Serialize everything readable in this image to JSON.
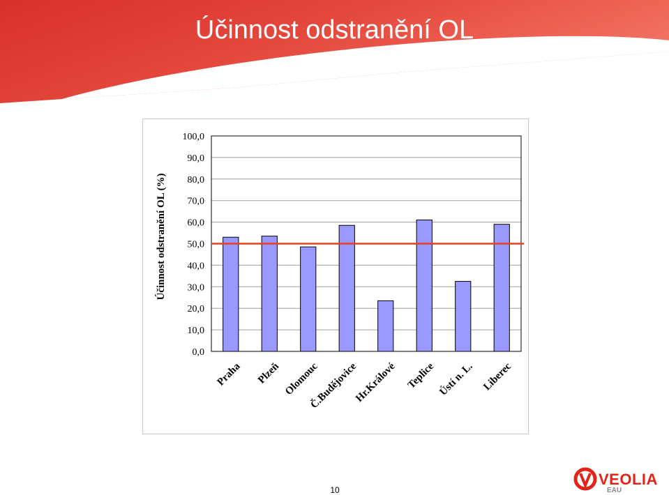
{
  "page": {
    "title": "Účinnost odstranění OL",
    "page_number": "10",
    "logo_text": "VEOLIA",
    "logo_subtext": "EAU"
  },
  "colors": {
    "header_red": "#e4473c",
    "bar_fill": "#9999ff",
    "bar_stroke": "#000000",
    "threshold_line": "#e8401c"
  },
  "chart_data": {
    "type": "bar",
    "categories": [
      "Praha",
      "Plzeň",
      "Olomouc",
      "Č.Budějovice",
      "Hr.Králové",
      "Teplice",
      "Ústí n. L.",
      "Liberec"
    ],
    "values": [
      53,
      53.5,
      48.5,
      58.5,
      23.5,
      61,
      32.5,
      59
    ],
    "ylabel": "Účinnost odstranění OL (%)",
    "xlabel": "",
    "ylim": [
      0,
      100
    ],
    "yticks": [
      "0,0",
      "10,0",
      "20,0",
      "30,0",
      "40,0",
      "50,0",
      "60,0",
      "70,0",
      "80,0",
      "90,0",
      "100,0"
    ],
    "threshold": 50,
    "grid": true,
    "legend": "none"
  }
}
